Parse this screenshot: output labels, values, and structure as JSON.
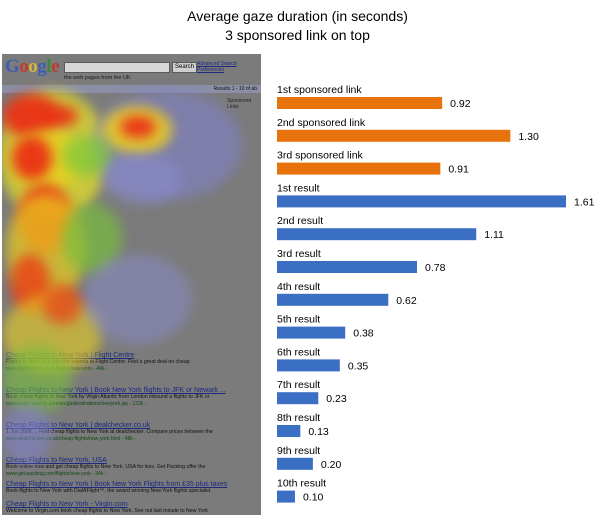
{
  "chart_data": {
    "type": "bar",
    "orientation": "horizontal",
    "title": "Average gaze duration (in seconds)",
    "subtitle": "3 sponsored link on top",
    "categories": [
      "1st sponsored link",
      "2nd sponsored link",
      "3rd sponsored link",
      "1st result",
      "2nd result",
      "3rd result",
      "4th result",
      "5th result",
      "6th result",
      "7th result",
      "8th result",
      "9th result",
      "10th result"
    ],
    "values": [
      0.92,
      1.3,
      0.91,
      1.61,
      1.11,
      0.78,
      0.62,
      0.38,
      0.35,
      0.23,
      0.13,
      0.2,
      0.1
    ],
    "value_labels": [
      "0.92",
      "1.30",
      "0.91",
      "1.61",
      "1.11",
      "0.78",
      "0.62",
      "0.38",
      "0.35",
      "0.23",
      "0.13",
      "0.20",
      "0.10"
    ],
    "bar_colors": [
      "#e8730c",
      "#e8730c",
      "#e8730c",
      "#3a6fc4",
      "#3a6fc4",
      "#3a6fc4",
      "#3a6fc4",
      "#3a6fc4",
      "#3a6fc4",
      "#3a6fc4",
      "#3a6fc4",
      "#3a6fc4",
      "#3a6fc4"
    ],
    "xlim": [
      0,
      1.61
    ],
    "grid": false,
    "legend": "none"
  },
  "heatmap_serp": {
    "logo_letters": [
      "G",
      "o",
      "o",
      "g",
      "l",
      "e"
    ],
    "search_button": "Search",
    "advanced_links": [
      "Advanced Search",
      "Preferences"
    ],
    "radio_text": "the web  pages from the UK",
    "results_info": "Results 1 - 10 of ab",
    "sponsored_heading": "Sponsored Links",
    "results": [
      {
        "title": "Cheap Flights to New York | Flight Centre",
        "snippet": "Flights to New York with the experts at Flight Centre. Find a great deal on cheap",
        "url": "www.flightcentre.co.uk/flights/new-york - 49k -"
      },
      {
        "title": "Cheap Flights to New York | Book New York flights to JFK or Newark ...",
        "snippet": "Book cheap flights to New York by Virgin Atlantic from London inbound a flights to JFK or",
        "url": "www.virgin-atlantic.com/en/gb/destinations/newyork.jsp - 123k -"
      },
      {
        "title": "Cheap Flights to New York | dealchecker.co.uk",
        "snippet": "1 Jun 2008 ... Find cheap flights to New York at dealchecker. Compare prices between the",
        "url": "www.dealchecker.co.uk/cheap-flights/new-york.html - 48k -"
      },
      {
        "title": "Cheap Flights to New York, USA",
        "snippet": "Book online now and get cheap flights to New York, USA for less. Get Packing offer the",
        "url": "www.get-packing.com/flights/new-york - 34k -"
      },
      {
        "title": "Cheap Flights to New York | Book New York Flights from £35 plus taxes",
        "snippet": "Book flights to New York with DialAFlight™, the award winning New York flights specialist.",
        "url": "www.dialaflight.co.uk/flights/usa/newyork/cheap.html - 35k -"
      },
      {
        "title": "Cheap Flights to New York - Virgin.com",
        "snippet": "Welcome to Virgin.com book cheap flights to New York. See out last minute to New York",
        "url": "www.virgin.com/travel/flights/newyork.aspx - 25k -"
      }
    ]
  }
}
